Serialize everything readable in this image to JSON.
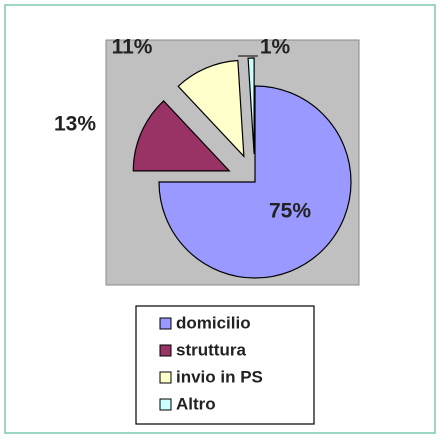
{
  "chart_data": {
    "type": "pie",
    "categories": [
      "domicilio",
      "struttura",
      "invio in PS",
      "Altro"
    ],
    "values": [
      75,
      13,
      11,
      1
    ],
    "value_labels": [
      "75%",
      "13%",
      "11%",
      "1%"
    ],
    "colors": [
      "#9999ff",
      "#993366",
      "#ffffcc",
      "#ccffff"
    ]
  }
}
